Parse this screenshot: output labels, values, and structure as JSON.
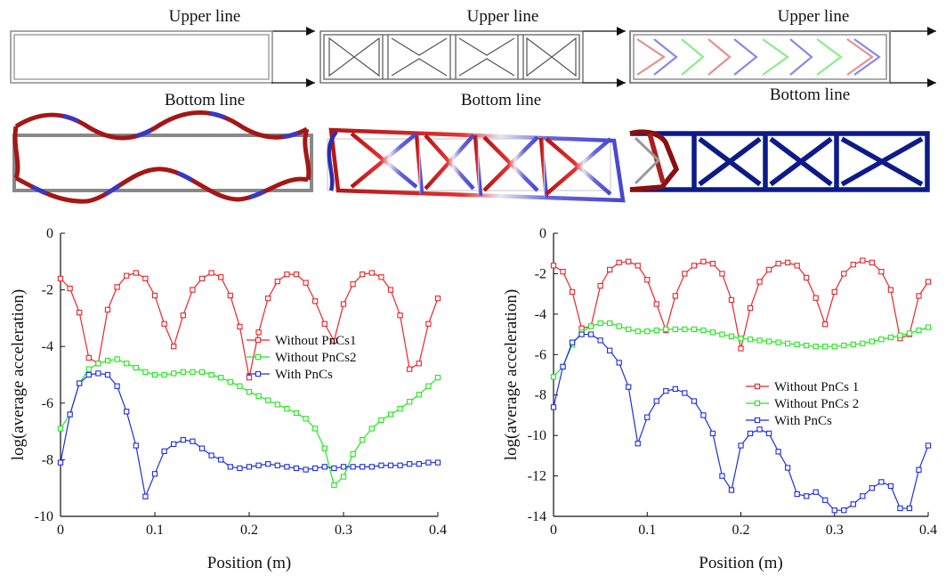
{
  "diagrams": {
    "upper_label": "Upper line",
    "bottom_label": "Bottom line"
  },
  "chart_data": [
    {
      "type": "line",
      "title": "",
      "xlabel": "Position (m)",
      "ylabel": "log(average acceleration)",
      "xlim": [
        0,
        0.4
      ],
      "ylim": [
        -10,
        0
      ],
      "xticks": [
        0,
        0.1,
        0.2,
        0.3,
        0.4
      ],
      "yticks": [
        -10,
        -8,
        -6,
        -4,
        -2,
        0
      ],
      "xtick_labels": [
        "0",
        "0.1",
        "0.2",
        "0.3",
        "0.4"
      ],
      "ytick_labels": [
        "-10",
        "-8",
        "-6",
        "-4",
        "-2",
        "0"
      ],
      "grid": false,
      "legend_position": "right",
      "x": [
        0,
        0.01,
        0.02,
        0.03,
        0.04,
        0.05,
        0.06,
        0.07,
        0.08,
        0.09,
        0.1,
        0.11,
        0.12,
        0.13,
        0.14,
        0.15,
        0.16,
        0.17,
        0.18,
        0.19,
        0.2,
        0.21,
        0.22,
        0.23,
        0.24,
        0.25,
        0.26,
        0.27,
        0.28,
        0.29,
        0.3,
        0.31,
        0.32,
        0.33,
        0.34,
        0.35,
        0.36,
        0.37,
        0.38,
        0.39,
        0.4
      ],
      "series": [
        {
          "name": "Without PnCs1",
          "color": "#e8262a",
          "values": [
            -1.6,
            -1.95,
            -2.8,
            -4.4,
            -4.6,
            -2.7,
            -1.9,
            -1.5,
            -1.4,
            -1.6,
            -2.2,
            -3.2,
            -4.0,
            -2.9,
            -2.0,
            -1.6,
            -1.4,
            -1.55,
            -2.2,
            -3.3,
            -5.1,
            -3.5,
            -2.3,
            -1.7,
            -1.45,
            -1.45,
            -1.75,
            -2.4,
            -3.2,
            -3.8,
            -2.5,
            -1.8,
            -1.45,
            -1.4,
            -1.55,
            -2.0,
            -2.9,
            -4.8,
            -4.6,
            -3.2,
            -2.3
          ]
        },
        {
          "name": "Without PnCs2",
          "color": "#22e81e",
          "values": [
            -6.9,
            -6.4,
            -5.3,
            -4.8,
            -4.6,
            -4.5,
            -4.45,
            -4.6,
            -4.75,
            -4.9,
            -5.0,
            -5.0,
            -4.95,
            -4.9,
            -4.9,
            -4.9,
            -5.0,
            -5.1,
            -5.25,
            -5.4,
            -5.6,
            -5.75,
            -5.9,
            -6.05,
            -6.2,
            -6.35,
            -6.55,
            -6.9,
            -7.6,
            -8.9,
            -8.6,
            -7.8,
            -7.3,
            -6.9,
            -6.6,
            -6.4,
            -6.2,
            -5.95,
            -5.7,
            -5.4,
            -5.1
          ]
        },
        {
          "name": "With PnCs",
          "color": "#1f2ee0",
          "values": [
            -8.1,
            -6.4,
            -5.3,
            -5.0,
            -4.95,
            -5.0,
            -5.4,
            -6.3,
            -7.5,
            -9.3,
            -8.5,
            -7.7,
            -7.45,
            -7.3,
            -7.35,
            -7.6,
            -7.85,
            -8.0,
            -8.25,
            -8.3,
            -8.25,
            -8.2,
            -8.15,
            -8.2,
            -8.25,
            -8.3,
            -8.35,
            -8.3,
            -8.25,
            -8.3,
            -8.25,
            -8.25,
            -8.25,
            -8.25,
            -8.2,
            -8.2,
            -8.2,
            -8.15,
            -8.15,
            -8.1,
            -8.1
          ]
        }
      ]
    },
    {
      "type": "line",
      "title": "",
      "xlabel": "Position (m)",
      "ylabel": "log(average acceleration)",
      "xlim": [
        0,
        0.4
      ],
      "ylim": [
        -14,
        0
      ],
      "xticks": [
        0,
        0.1,
        0.2,
        0.3,
        0.4
      ],
      "yticks": [
        -14,
        -12,
        -10,
        -8,
        -6,
        -4,
        -2,
        0
      ],
      "xtick_labels": [
        "0",
        "0.1",
        "0.2",
        "0.3",
        "0.4"
      ],
      "ytick_labels": [
        "-14",
        "-12",
        "-10",
        "-8",
        "-6",
        "-4",
        "-2",
        "0"
      ],
      "grid": false,
      "legend_position": "right",
      "x": [
        0,
        0.01,
        0.02,
        0.03,
        0.04,
        0.05,
        0.06,
        0.07,
        0.08,
        0.09,
        0.1,
        0.11,
        0.12,
        0.13,
        0.14,
        0.15,
        0.16,
        0.17,
        0.18,
        0.19,
        0.2,
        0.21,
        0.22,
        0.23,
        0.24,
        0.25,
        0.26,
        0.27,
        0.28,
        0.29,
        0.3,
        0.31,
        0.32,
        0.33,
        0.34,
        0.35,
        0.36,
        0.37,
        0.38,
        0.39,
        0.4
      ],
      "series": [
        {
          "name": "Without PnCs 1",
          "color": "#e8262a",
          "values": [
            -1.6,
            -1.9,
            -2.9,
            -4.7,
            -4.6,
            -2.6,
            -1.8,
            -1.45,
            -1.4,
            -1.6,
            -2.3,
            -3.5,
            -4.8,
            -3.1,
            -2.0,
            -1.6,
            -1.4,
            -1.5,
            -2.0,
            -3.3,
            -5.7,
            -3.7,
            -2.4,
            -1.8,
            -1.5,
            -1.45,
            -1.6,
            -2.2,
            -3.2,
            -4.5,
            -2.9,
            -2.0,
            -1.55,
            -1.35,
            -1.45,
            -1.9,
            -2.8,
            -5.2,
            -5.0,
            -3.1,
            -2.4
          ]
        },
        {
          "name": "Without PnCs 2",
          "color": "#22e81e",
          "values": [
            -7.1,
            -6.6,
            -5.5,
            -4.9,
            -4.6,
            -4.45,
            -4.45,
            -4.6,
            -4.75,
            -4.85,
            -4.85,
            -4.8,
            -4.75,
            -4.75,
            -4.75,
            -4.75,
            -4.8,
            -4.9,
            -5.0,
            -5.1,
            -5.2,
            -5.25,
            -5.3,
            -5.35,
            -5.4,
            -5.45,
            -5.5,
            -5.55,
            -5.6,
            -5.6,
            -5.6,
            -5.55,
            -5.5,
            -5.45,
            -5.35,
            -5.25,
            -5.15,
            -5.05,
            -4.95,
            -4.8,
            -4.65
          ]
        },
        {
          "name": "With PnCs",
          "color": "#1f2ee0",
          "values": [
            -8.6,
            -6.6,
            -5.4,
            -5.0,
            -5.0,
            -5.3,
            -5.8,
            -6.4,
            -7.6,
            -10.4,
            -9.1,
            -8.3,
            -7.8,
            -7.7,
            -7.9,
            -8.3,
            -9.0,
            -9.9,
            -12.0,
            -12.7,
            -10.5,
            -9.9,
            -9.7,
            -9.9,
            -10.8,
            -11.6,
            -12.9,
            -13.0,
            -12.8,
            -13.2,
            -13.7,
            -13.7,
            -13.4,
            -13.0,
            -12.6,
            -12.3,
            -12.5,
            -13.6,
            -13.6,
            -11.7,
            -10.5
          ]
        }
      ]
    }
  ]
}
